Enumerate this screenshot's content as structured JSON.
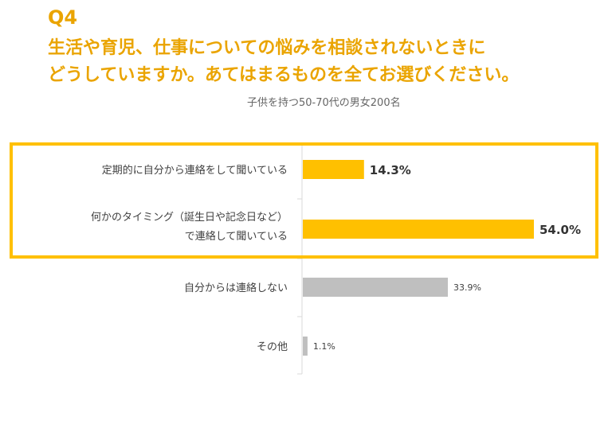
{
  "question": {
    "number": "Q4",
    "title_lines": [
      "生活や育児、仕事についての悩みを相談されないときに",
      "どうしていますか。あてはまるものを全てお選びください。"
    ]
  },
  "subtitle": "子供を持つ50-70代の男女200名",
  "colors": {
    "accent": "#EAA400",
    "highlight_bar": "#FFC000",
    "other_bar": "#BFBFBF",
    "highlight_border": "#FFC000",
    "axis_line": "#D9D9D9",
    "label_text": "#404040"
  },
  "chart_data": {
    "type": "bar",
    "orientation": "horizontal",
    "categories": [
      [
        "定期的に自分から連絡をして聞いている"
      ],
      [
        "何かのタイミング（誕生日や記念日など）",
        "で連絡して聞いている"
      ],
      [
        "自分からは連絡しない"
      ],
      [
        "その他"
      ]
    ],
    "values": [
      14.3,
      54.0,
      33.9,
      1.1
    ],
    "value_labels": [
      "14.3%",
      "54.0%",
      "33.9%",
      "1.1%"
    ],
    "highlighted": [
      true,
      true,
      false,
      false
    ],
    "xlim": [
      0,
      60
    ],
    "unit": "%",
    "grid": false,
    "legend": "none"
  }
}
